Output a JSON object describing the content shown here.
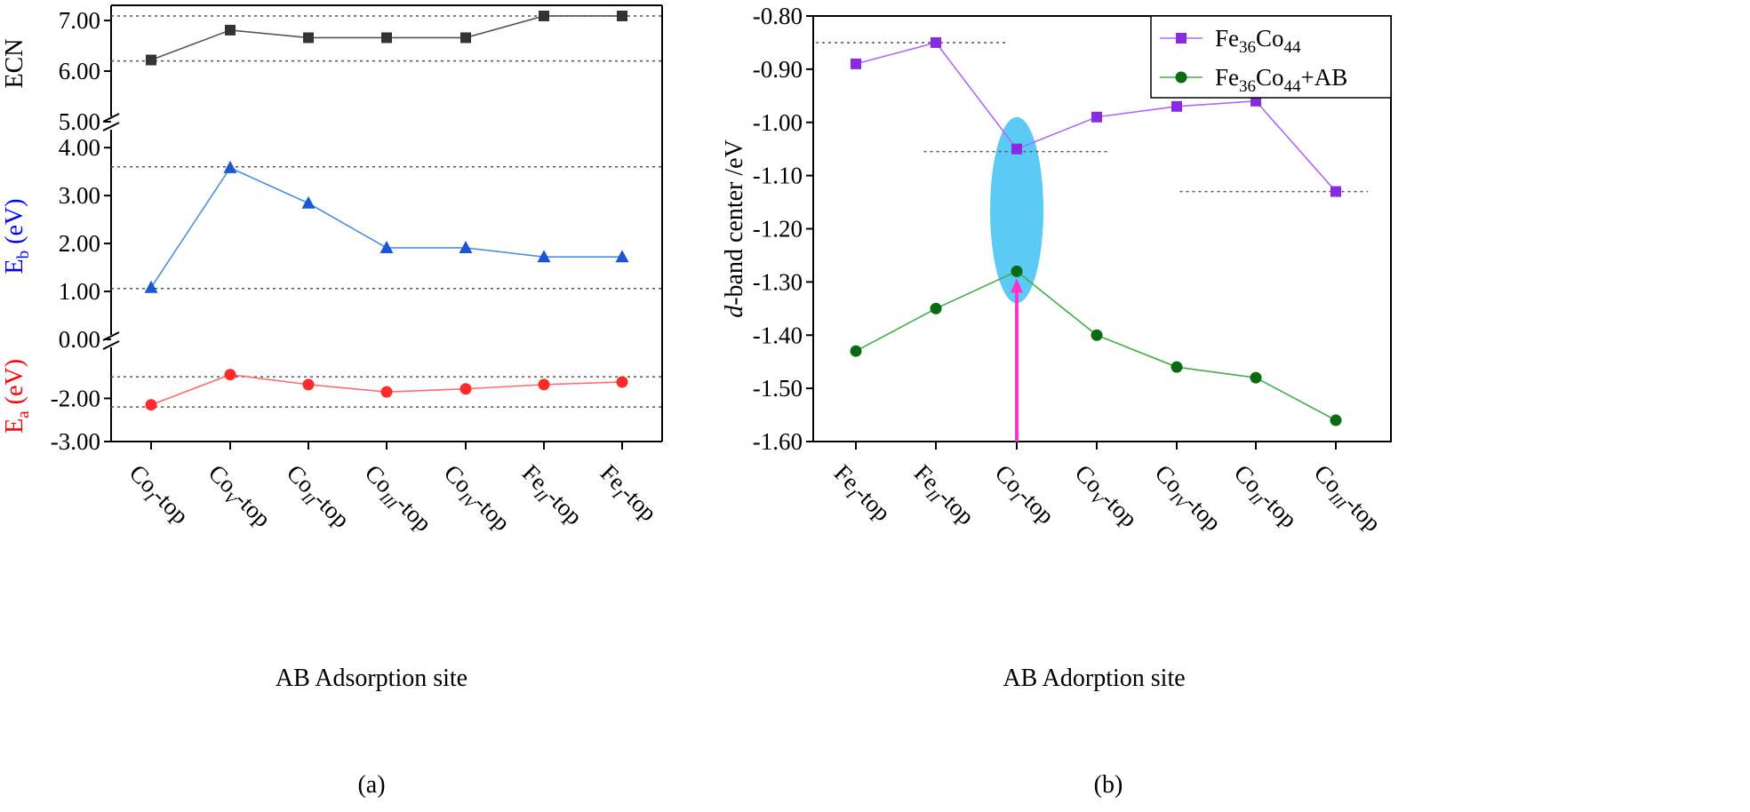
{
  "figure_labels": {
    "a": "(a)",
    "b": "(b)"
  },
  "chart_data": [
    {
      "type": "line",
      "panel": "(a)",
      "xlabel": "AB Adsorption site",
      "categories": [
        {
          "base": "Co",
          "sub": "I",
          "suffix": "-top"
        },
        {
          "base": "Co",
          "sub": "V",
          "suffix": "-top"
        },
        {
          "base": "Co",
          "sub": "II",
          "suffix": "-top"
        },
        {
          "base": "Co",
          "sub": "III",
          "suffix": "-top"
        },
        {
          "base": "Co",
          "sub": "IV",
          "suffix": "-top"
        },
        {
          "base": "Fe",
          "sub": "II",
          "suffix": "-top"
        },
        {
          "base": "Fe",
          "sub": "I",
          "suffix": "-top"
        }
      ],
      "sub_panels": [
        {
          "ylabel": "ECN",
          "ylabel_color": "#000000",
          "ylim": [
            5.0,
            7.3
          ],
          "yticks": [
            5.0,
            6.0,
            7.0
          ],
          "ytick_labels": [
            "5.00",
            "6.00",
            "7.00"
          ],
          "marker": "square",
          "color": "#333333",
          "line_color": "#555555",
          "values": [
            6.22,
            6.81,
            6.66,
            6.66,
            6.66,
            7.09,
            7.09
          ],
          "ref_lines": [
            6.2,
            7.09
          ]
        },
        {
          "ylabel": {
            "base": "E",
            "sub": "b",
            "suffix": " (eV)"
          },
          "ylabel_color": "#0000ff",
          "ylim": [
            0.0,
            4.3
          ],
          "yticks": [
            0.0,
            1.0,
            2.0,
            3.0,
            4.0
          ],
          "ytick_labels": [
            "0.00",
            "1.00",
            "2.00",
            "3.00",
            "4.00"
          ],
          "marker": "triangle",
          "color": "#1a56d6",
          "line_color": "#4a90e2",
          "values": [
            1.08,
            3.58,
            2.84,
            1.91,
            1.91,
            1.72,
            1.72
          ],
          "ref_lines": [
            1.06,
            3.6
          ]
        },
        {
          "ylabel": {
            "base": "E",
            "sub": "a",
            "suffix": " (eV)"
          },
          "ylabel_color": "#ff0000",
          "ylim": [
            -3.0,
            -0.9
          ],
          "yticks": [
            -2.0,
            -3.0
          ],
          "ytick_labels": [
            "-2.00",
            "-3.00"
          ],
          "marker": "circle",
          "color": "#ff2a2a",
          "line_color": "#ff6b6b",
          "values": [
            -2.15,
            -1.45,
            -1.68,
            -1.85,
            -1.78,
            -1.68,
            -1.62
          ],
          "ref_lines": [
            -1.5,
            -2.2
          ]
        }
      ]
    },
    {
      "type": "line",
      "panel": "(b)",
      "xlabel": "AB Adorption site",
      "ylabel": {
        "italic": "d",
        "rest": "-band center /eV"
      },
      "ylim": [
        -1.6,
        -0.8
      ],
      "yticks": [
        -0.8,
        -0.9,
        -1.0,
        -1.1,
        -1.2,
        -1.3,
        -1.4,
        -1.5,
        -1.6
      ],
      "ytick_labels": [
        "-0.80",
        "-0.90",
        "-1.00",
        "-1.10",
        "-1.20",
        "-1.30",
        "-1.40",
        "-1.50",
        "-1.60"
      ],
      "categories": [
        {
          "base": "Fe",
          "sub": "I",
          "suffix": "-top"
        },
        {
          "base": "Fe",
          "sub": "II",
          "suffix": "-top"
        },
        {
          "base": "Co",
          "sub": "I",
          "suffix": "-top"
        },
        {
          "base": "Co",
          "sub": "V",
          "suffix": "-top"
        },
        {
          "base": "Co",
          "sub": "IV",
          "suffix": "-top"
        },
        {
          "base": "Co",
          "sub": "II",
          "suffix": "-top"
        },
        {
          "base": "Co",
          "sub": "III",
          "suffix": "-top"
        }
      ],
      "series": [
        {
          "name": "Fe36Co44",
          "name_parts": [
            [
              "Fe",
              ""
            ],
            [
              "36",
              "sub"
            ],
            [
              "Co",
              ""
            ],
            [
              "44",
              "sub"
            ]
          ],
          "marker": "square",
          "color": "#8a2be2",
          "line_color": "#b066ff",
          "values": [
            -0.89,
            -0.85,
            -1.05,
            -0.99,
            -0.97,
            -0.96,
            -1.13
          ]
        },
        {
          "name": "Fe36Co44+AB",
          "name_parts": [
            [
              "Fe",
              ""
            ],
            [
              "36",
              "sub"
            ],
            [
              "Co",
              ""
            ],
            [
              "44",
              "sub"
            ],
            [
              "+AB",
              ""
            ]
          ],
          "marker": "circle",
          "color": "#0b6b12",
          "line_color": "#3cb043",
          "values": [
            -1.43,
            -1.35,
            -1.28,
            -1.4,
            -1.46,
            -1.48,
            -1.56
          ]
        }
      ],
      "legend_position": "top-right",
      "highlight": {
        "category_index": 2,
        "color": "#5bcbf5",
        "arrow_color": "#ff33cc",
        "y_range": [
          -1.34,
          -0.99
        ]
      },
      "ref_lines": [
        {
          "y": -0.85,
          "from": -0.5,
          "to": 1.9
        },
        {
          "y": -1.055,
          "from": 0.85,
          "to": 3.15
        },
        {
          "y": -1.13,
          "from": 4.05,
          "to": 6.4
        }
      ]
    }
  ]
}
